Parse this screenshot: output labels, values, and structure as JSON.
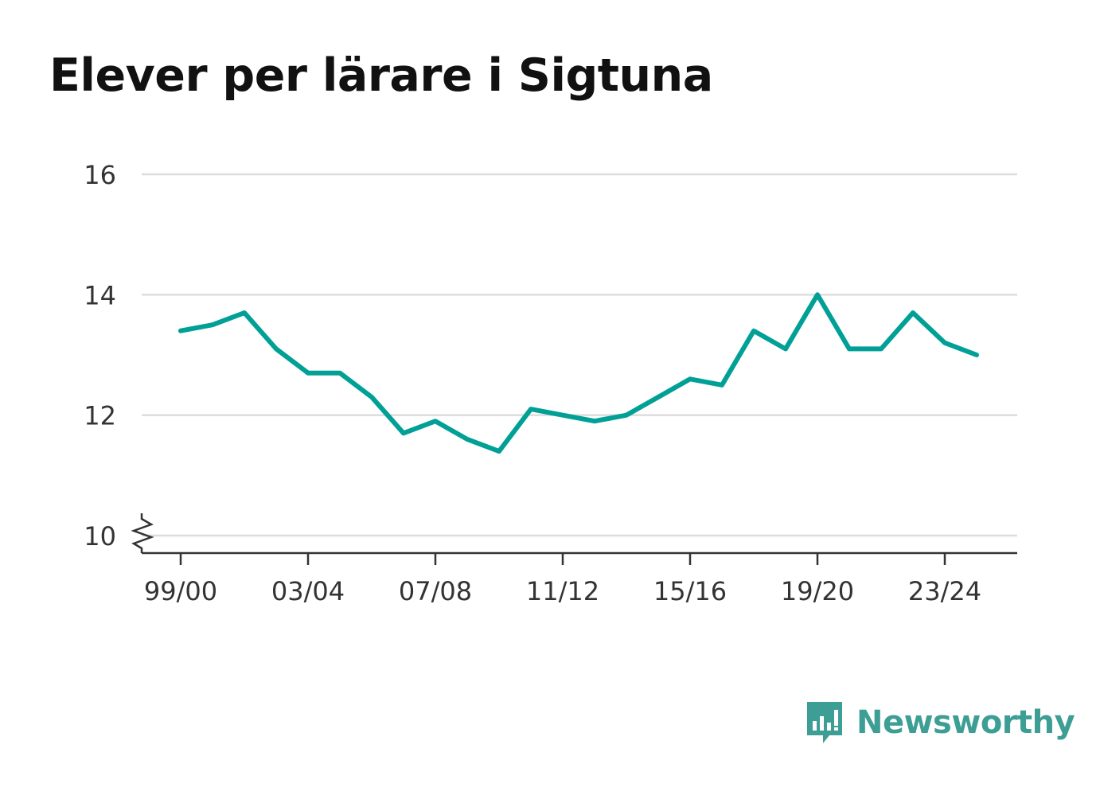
{
  "chart_data": {
    "type": "line",
    "title": "Elever per lärare i Sigtuna",
    "xlabel": "",
    "ylabel": "",
    "ylim": [
      10,
      16
    ],
    "yticks": [
      "10",
      "12",
      "14",
      "16"
    ],
    "y_axis_break": true,
    "grid": true,
    "xtick_labels": [
      "99/00",
      "03/04",
      "07/08",
      "11/12",
      "15/16",
      "19/20",
      "23/24"
    ],
    "x": [
      "99/00",
      "00/01",
      "01/02",
      "02/03",
      "03/04",
      "04/05",
      "05/06",
      "06/07",
      "07/08",
      "08/09",
      "09/10",
      "10/11",
      "11/12",
      "12/13",
      "13/14",
      "14/15",
      "15/16",
      "16/17",
      "17/18",
      "18/19",
      "19/20",
      "20/21",
      "21/22",
      "22/23",
      "23/24",
      "24/25"
    ],
    "series": [
      {
        "color": "#00a096",
        "values": [
          13.4,
          13.5,
          13.7,
          13.1,
          12.7,
          12.7,
          12.3,
          11.7,
          11.9,
          11.6,
          11.4,
          12.1,
          12.0,
          11.9,
          12.0,
          12.3,
          12.6,
          12.5,
          13.4,
          13.1,
          14.0,
          13.1,
          13.1,
          13.7,
          13.2,
          13.0
        ]
      }
    ]
  },
  "brand": {
    "name": "Newsworthy",
    "icon": "newsworthy-logo-icon",
    "color": "#3d9e95"
  }
}
